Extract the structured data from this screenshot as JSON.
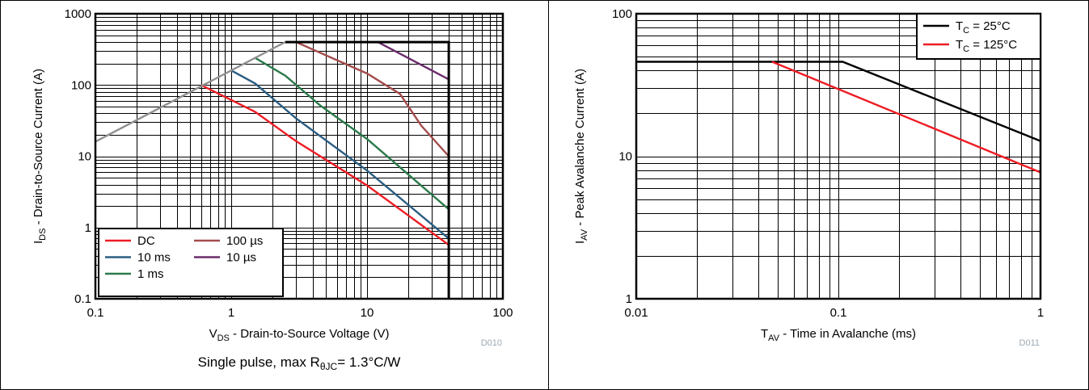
{
  "chart_data": [
    {
      "type": "line",
      "id": "D010",
      "xlabel": "V_DS - Drain-to-Source Voltage (V)",
      "xlabel_main": "V",
      "xlabel_sub": "DS",
      "xlabel_rest": " - Drain-to-Source Voltage (V)",
      "ylabel": "I_DS - Drain-to-Source Current (A)",
      "ylabel_main": "I",
      "ylabel_sub": "DS",
      "ylabel_rest": " - Drain-to-Source Current (A)",
      "x_scale": "log",
      "y_scale": "log",
      "xlim": [
        0.1,
        100
      ],
      "ylim": [
        0.1,
        1000
      ],
      "x_ticks": [
        0.1,
        1,
        10,
        100
      ],
      "x_tick_labels": [
        "0.1",
        "1",
        "10",
        "100"
      ],
      "y_ticks": [
        0.1,
        1,
        10,
        100,
        1000
      ],
      "y_tick_labels": [
        "0.1",
        "1",
        "10",
        "100",
        "1000"
      ],
      "grid": true,
      "legend_position": "bottom-left",
      "legend_columns": 2,
      "figure_id": "D010",
      "caption": "Single pulse, max RθJC= 1.3°C/W",
      "caption_pre": "Single pulse, max R",
      "caption_sub": "θJC",
      "caption_post": "= 1.3°C/W",
      "series": [
        {
          "name": "DC",
          "color": "#ee1c24",
          "x": [
            0.6,
            1.5,
            3,
            10,
            40
          ],
          "y": [
            100,
            42,
            16.3,
            3.9,
            0.57
          ]
        },
        {
          "name": "10 ms",
          "color": "#2b5e82",
          "x": [
            1,
            1.5,
            3,
            10,
            40
          ],
          "y": [
            160,
            105,
            34,
            6.3,
            0.7
          ]
        },
        {
          "name": "1 ms",
          "color": "#2b7a4b",
          "x": [
            1.5,
            2.5,
            4.5,
            10,
            40
          ],
          "y": [
            240,
            135,
            52,
            17.5,
            1.8
          ]
        },
        {
          "name": "100 µs",
          "color": "#a34c4c",
          "x": [
            3,
            10,
            17.5,
            25,
            40
          ],
          "y": [
            400,
            145,
            75,
            27,
            10
          ]
        },
        {
          "name": "10 µs",
          "color": "#6b2c6c",
          "x": [
            12,
            40
          ],
          "y": [
            400,
            120
          ]
        },
        {
          "name": "",
          "color": "#909090",
          "x": [
            0.1,
            2.5
          ],
          "y": [
            16,
            400
          ]
        },
        {
          "name": "",
          "color": "#000000",
          "x": [
            2.5,
            40,
            40
          ],
          "y": [
            400,
            400,
            0.1
          ]
        }
      ],
      "legend_entries": [
        "DC",
        "10 ms",
        "1 ms",
        "100 µs",
        "10 µs"
      ]
    },
    {
      "type": "line",
      "id": "D011",
      "xlabel": "T_AV - Time in Avalanche (ms)",
      "xlabel_main": "T",
      "xlabel_sub": "AV",
      "xlabel_rest": " - Time in Avalanche (ms)",
      "ylabel": "I_AV - Peak Avalanche Current (A)",
      "ylabel_main": "I",
      "ylabel_sub": "AV",
      "ylabel_rest": " - Peak Avalanche Current (A)",
      "x_scale": "log",
      "y_scale": "log",
      "xlim": [
        0.01,
        1
      ],
      "ylim": [
        1,
        100
      ],
      "x_ticks": [
        0.01,
        0.1,
        1
      ],
      "x_tick_labels": [
        "0.01",
        "0.1",
        "1"
      ],
      "y_ticks": [
        1,
        10,
        100
      ],
      "y_tick_labels": [
        "1",
        "10",
        "100"
      ],
      "grid": true,
      "legend_position": "top-right",
      "legend_columns": 1,
      "figure_id": "D011",
      "series": [
        {
          "name": "T_C = 25°C",
          "label_main": "T",
          "label_sub": "C",
          "label_rest": " = 25°C",
          "color": "#000000",
          "x": [
            0.01,
            0.105,
            1
          ],
          "y": [
            46,
            46,
            12.8
          ]
        },
        {
          "name": "T_C = 125°C",
          "label_main": "T",
          "label_sub": "C",
          "label_rest": " = 125°C",
          "color": "#ee1c24",
          "x": [
            0.047,
            1
          ],
          "y": [
            46,
            7.7
          ]
        }
      ]
    }
  ]
}
